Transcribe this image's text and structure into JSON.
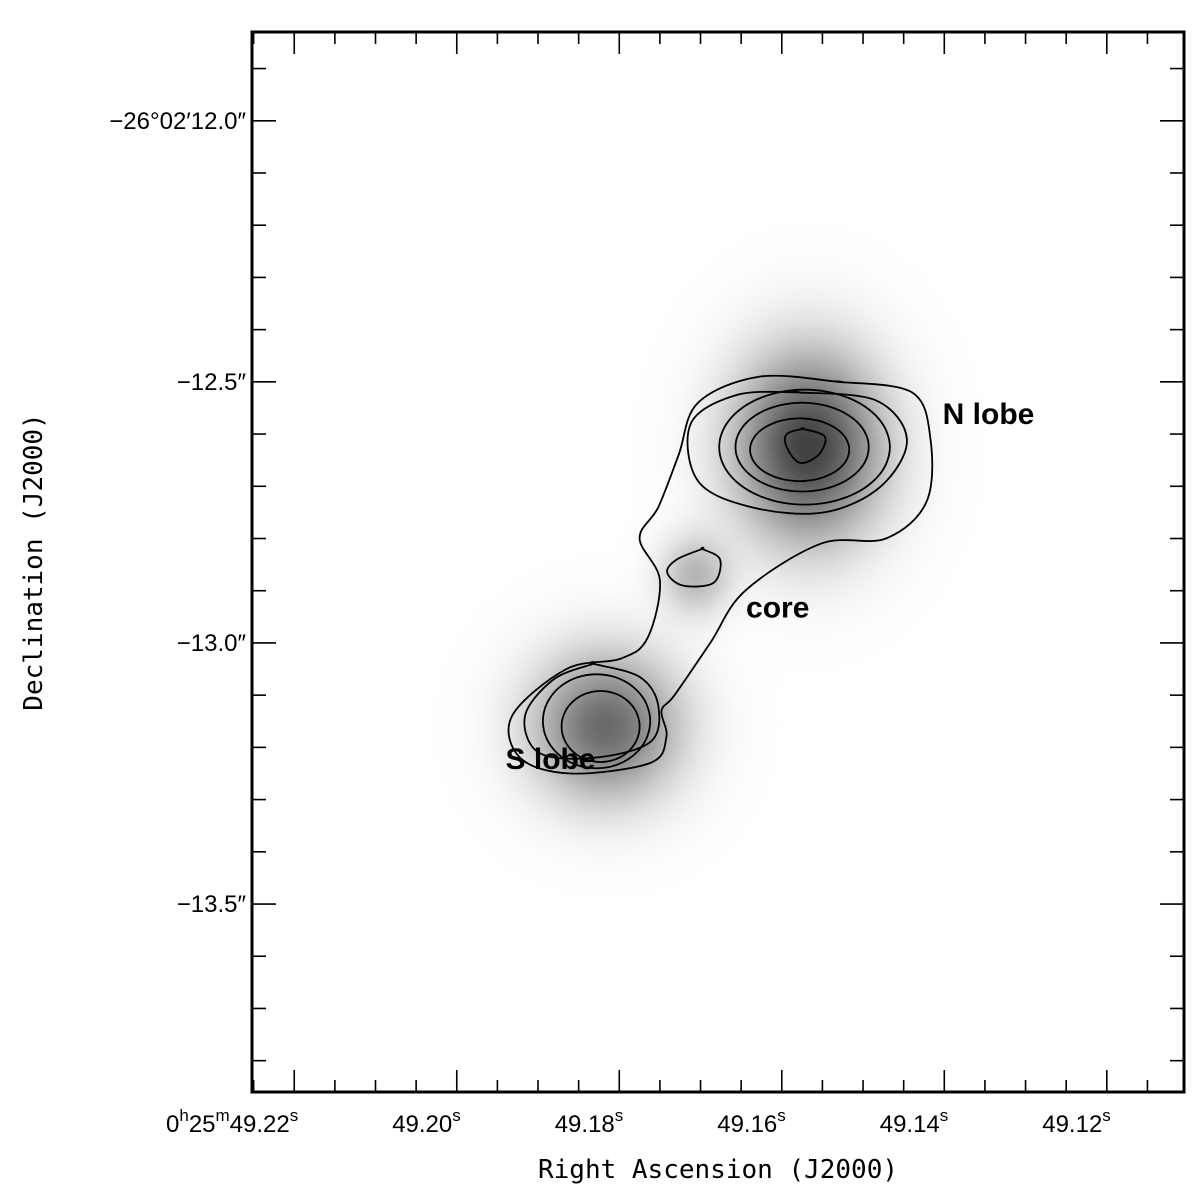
{
  "chart_data": {
    "type": "heatmap",
    "title": "",
    "xlabel": "Right Ascension (J2000)",
    "ylabel": "Declination (J2000)",
    "x_units": "RA seconds (0h25m)",
    "y_units": "Dec arcsec offset (-26°02′)",
    "xlim": [
      49.2252,
      49.1105
    ],
    "ylim": [
      11.83,
      13.86
    ],
    "y_inverted": true,
    "x_major_ticks": [
      49.22,
      49.2,
      49.18,
      49.16,
      49.14,
      49.12
    ],
    "x_minor_step": 0.005,
    "y_major_ticks": [
      12.0,
      12.5,
      13.0,
      13.5
    ],
    "y_minor_step": 0.1,
    "x_tick_labels": [
      {
        "prefix": "0",
        "h": "h",
        "mid": "25",
        "m": "m",
        "main": "49.22",
        "sup": "s"
      },
      {
        "prefix": "",
        "h": "",
        "mid": "",
        "m": "",
        "main": "49.20",
        "sup": "s"
      },
      {
        "prefix": "",
        "h": "",
        "mid": "",
        "m": "",
        "main": "49.18",
        "sup": "s"
      },
      {
        "prefix": "",
        "h": "",
        "mid": "",
        "m": "",
        "main": "49.16",
        "sup": "s"
      },
      {
        "prefix": "",
        "h": "",
        "mid": "",
        "m": "",
        "main": "49.14",
        "sup": "s"
      },
      {
        "prefix": "",
        "h": "",
        "mid": "",
        "m": "",
        "main": "49.12",
        "sup": "s"
      }
    ],
    "y_tick_labels": [
      "−26°02′12.0″",
      "−12.5″",
      "−13.0″",
      "−13.5″"
    ],
    "grid": false,
    "colormap": "greyscale (white to dark grey)",
    "sources": [
      {
        "label": "N lobe",
        "ra": 49.1567,
        "dec": 12.625,
        "peak": 1.0,
        "sigma_ra": 0.0058,
        "sigma_dec": 0.115
      },
      {
        "label": "S lobe",
        "ra": 49.1816,
        "dec": 13.16,
        "peak": 0.75,
        "sigma_ra": 0.0058,
        "sigma_dec": 0.09
      },
      {
        "label": "core",
        "ra": 49.1706,
        "dec": 12.87,
        "peak": 0.32,
        "sigma_ra": 0.0028,
        "sigma_dec": 0.05
      }
    ],
    "annotations": [
      {
        "text": "N lobe",
        "ra": 49.1402,
        "dec": 12.56
      },
      {
        "text": "core",
        "ra": 49.1644,
        "dec": 12.93
      },
      {
        "text": "S lobe",
        "ra": 49.194,
        "dec": 13.22
      }
    ],
    "contour_sets": [
      {
        "name": "outer",
        "points": [
          [
            49.153,
            12.5
          ],
          [
            49.144,
            12.52
          ],
          [
            49.1417,
            12.61
          ],
          [
            49.1422,
            12.73
          ],
          [
            49.1472,
            12.8
          ],
          [
            49.1552,
            12.81
          ],
          [
            49.1645,
            12.9
          ],
          [
            49.1688,
            13.0
          ],
          [
            49.1732,
            13.1
          ],
          [
            49.1748,
            13.13
          ],
          [
            49.1742,
            13.18
          ],
          [
            49.1762,
            13.23
          ],
          [
            49.186,
            13.25
          ],
          [
            49.1922,
            13.22
          ],
          [
            49.1932,
            13.14
          ],
          [
            49.1865,
            13.05
          ],
          [
            49.1798,
            13.03
          ],
          [
            49.1765,
            12.99
          ],
          [
            49.175,
            12.88
          ],
          [
            49.1775,
            12.8
          ],
          [
            49.1752,
            12.74
          ],
          [
            49.1727,
            12.64
          ],
          [
            49.1703,
            12.54
          ],
          [
            49.1627,
            12.49
          ],
          [
            49.153,
            12.5
          ]
        ]
      },
      {
        "name": "N-1",
        "points": [
          [
            49.1582,
            12.52
          ],
          [
            49.1485,
            12.535
          ],
          [
            49.1446,
            12.61
          ],
          [
            49.1478,
            12.7
          ],
          [
            49.1548,
            12.75
          ],
          [
            49.1637,
            12.74
          ],
          [
            49.1703,
            12.69
          ],
          [
            49.1712,
            12.58
          ],
          [
            49.1655,
            12.525
          ],
          [
            49.1582,
            12.52
          ]
        ]
      },
      {
        "name": "N-2",
        "ellipse": [
          49.1572,
          12.625,
          0.0105,
          0.11
        ]
      },
      {
        "name": "N-3",
        "ellipse": [
          49.1575,
          12.625,
          0.0082,
          0.085
        ]
      },
      {
        "name": "N-4",
        "ellipse": [
          49.1578,
          12.63,
          0.0061,
          0.06
        ]
      },
      {
        "name": "N-5",
        "points": [
          [
            49.1574,
            12.59
          ],
          [
            49.1547,
            12.605
          ],
          [
            49.1555,
            12.64
          ],
          [
            49.1578,
            12.655
          ],
          [
            49.1594,
            12.625
          ],
          [
            49.1594,
            12.6
          ],
          [
            49.1574,
            12.59
          ]
        ]
      },
      {
        "name": "core",
        "points": [
          [
            49.1698,
            12.82
          ],
          [
            49.1676,
            12.84
          ],
          [
            49.1684,
            12.885
          ],
          [
            49.1722,
            12.89
          ],
          [
            49.1741,
            12.865
          ],
          [
            49.1729,
            12.84
          ],
          [
            49.1698,
            12.82
          ]
        ]
      },
      {
        "name": "S-1",
        "points": [
          [
            49.1832,
            13.04
          ],
          [
            49.1775,
            13.065
          ],
          [
            49.1752,
            13.12
          ],
          [
            49.1762,
            13.19
          ],
          [
            49.1832,
            13.22
          ],
          [
            49.1899,
            13.21
          ],
          [
            49.1916,
            13.14
          ],
          [
            49.1881,
            13.07
          ],
          [
            49.1832,
            13.04
          ]
        ]
      },
      {
        "name": "S-2",
        "ellipse": [
          49.1828,
          13.15,
          0.0066,
          0.09
        ]
      },
      {
        "name": "S-3",
        "ellipse": [
          49.1823,
          13.16,
          0.0048,
          0.068
        ]
      }
    ]
  }
}
